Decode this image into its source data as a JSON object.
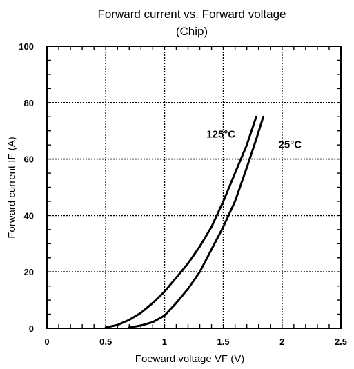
{
  "chart_data": {
    "type": "line",
    "title": "Forward current vs. Forward voltage",
    "subtitle": "(Chip)",
    "xlabel": "Foeward voltage  VF (V)",
    "ylabel": "Forward current  IF  (A)",
    "xlim": [
      0,
      2.5
    ],
    "ylim": [
      0,
      100
    ],
    "x_ticks": [
      "0",
      "0.5",
      "1",
      "1.5",
      "2",
      "2.5"
    ],
    "y_ticks": [
      "0",
      "20",
      "40",
      "60",
      "80",
      "100"
    ],
    "grid": true,
    "series": [
      {
        "name": "125°C",
        "points": [
          [
            0.5,
            0.3
          ],
          [
            0.6,
            1.2
          ],
          [
            0.7,
            3.0
          ],
          [
            0.8,
            5.5
          ],
          [
            0.9,
            9.0
          ],
          [
            1.0,
            13.0
          ],
          [
            1.1,
            18.0
          ],
          [
            1.2,
            23.0
          ],
          [
            1.3,
            29.0
          ],
          [
            1.4,
            36.0
          ],
          [
            1.5,
            45.0
          ],
          [
            1.6,
            55.0
          ],
          [
            1.7,
            65.0
          ],
          [
            1.78,
            75.0
          ]
        ]
      },
      {
        "name": "25°C",
        "points": [
          [
            0.7,
            0.3
          ],
          [
            0.8,
            1.0
          ],
          [
            0.9,
            2.2
          ],
          [
            1.0,
            4.5
          ],
          [
            1.1,
            9.0
          ],
          [
            1.2,
            14.0
          ],
          [
            1.3,
            20.0
          ],
          [
            1.4,
            28.0
          ],
          [
            1.5,
            36.0
          ],
          [
            1.6,
            45.0
          ],
          [
            1.7,
            57.0
          ],
          [
            1.78,
            67.0
          ],
          [
            1.84,
            75.0
          ]
        ]
      }
    ]
  }
}
